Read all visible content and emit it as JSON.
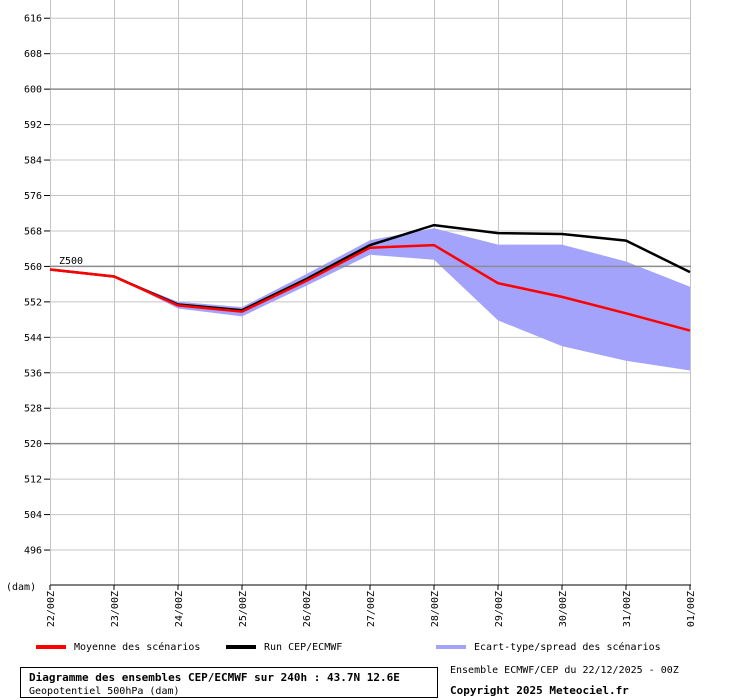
{
  "chart_data": {
    "type": "line",
    "ylabel": "(dam)",
    "ylim": [
      488,
      620
    ],
    "yticks": [
      496,
      504,
      512,
      520,
      528,
      536,
      544,
      552,
      560,
      568,
      576,
      584,
      592,
      600,
      608,
      616
    ],
    "categories": [
      "22/00Z",
      "23/00Z",
      "24/00Z",
      "25/00Z",
      "26/00Z",
      "27/00Z",
      "28/00Z",
      "29/00Z",
      "30/00Z",
      "31/00Z",
      "01/00Z"
    ],
    "series_label": "Z500",
    "series": [
      {
        "name": "Moyenne des scénarios",
        "color": "#ff0000",
        "values": [
          559.2,
          557.6,
          551.1,
          549.7,
          556.6,
          564.1,
          564.7,
          556.1,
          553.0,
          549.3,
          545.4
        ]
      },
      {
        "name": "Run CEP/ECMWF",
        "color": "#000000",
        "values": [
          559.2,
          557.6,
          551.3,
          550.0,
          557.0,
          564.7,
          569.2,
          567.4,
          567.2,
          565.7,
          558.6
        ]
      }
    ],
    "spread": {
      "name": "Ecart-type/spread des scénarios",
      "color": "#a3a3fb",
      "upper": [
        559.2,
        557.6,
        551.9,
        550.7,
        558.1,
        565.8,
        568.5,
        564.8,
        564.8,
        561.0,
        555.3
      ],
      "lower": [
        559.2,
        557.6,
        550.4,
        548.6,
        555.5,
        562.5,
        561.4,
        547.7,
        541.9,
        538.6,
        536.4
      ]
    }
  },
  "footer": {
    "title": "Diagramme des ensembles CEP/ECMWF sur 240h : 43.7N 12.6E",
    "subtitle": "Geopotentiel 500hPa (dam)",
    "run_info": "Ensemble ECMWF/CEP du 22/12/2025 - 00Z",
    "copyright": "Copyright 2025 Meteociel.fr"
  }
}
